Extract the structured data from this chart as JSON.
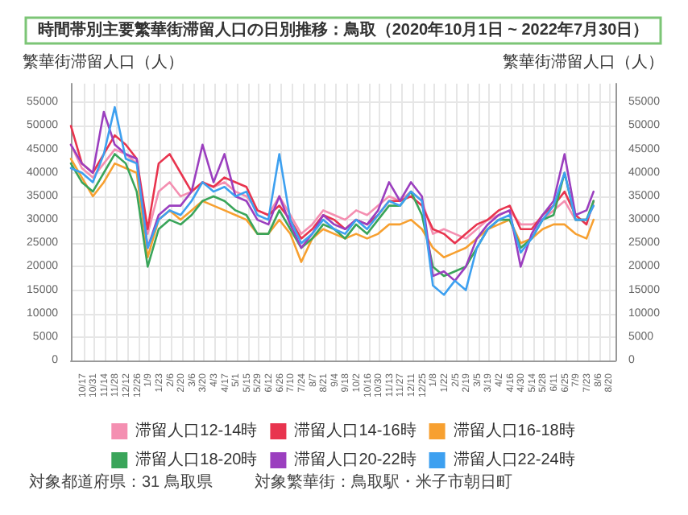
{
  "chart_data": {
    "type": "line",
    "title": "時間帯別主要繁華街滞留人口の日別推移：鳥取（2020年10月1日 ~ 2022年7月30日）",
    "ylabel": "繁華街滞留人口（人）",
    "y2label": "繁華街滞留人口（人）",
    "annotations": [
      "対象都道府県：31 鳥取県",
      "対象繁華街：鳥取駅・米子市朝日町"
    ],
    "x": [
      "2020-10-01",
      "2020-10-15",
      "2020-10-29",
      "2020-11-12",
      "2020-11-26",
      "2020-12-10",
      "2020-12-24",
      "2021-01-07",
      "2021-01-21",
      "2021-02-04",
      "2021-02-18",
      "2021-03-04",
      "2021-03-18",
      "2021-04-01",
      "2021-04-15",
      "2021-04-29",
      "2021-05-13",
      "2021-05-27",
      "2021-06-10",
      "2021-06-24",
      "2021-07-08",
      "2021-07-22",
      "2021-08-05",
      "2021-08-19",
      "2021-09-02",
      "2021-09-16",
      "2021-09-30",
      "2021-10-14",
      "2021-10-28",
      "2021-11-11",
      "2021-11-25",
      "2021-12-09",
      "2021-12-23",
      "2022-01-06",
      "2022-01-20",
      "2022-02-03",
      "2022-02-17",
      "2022-03-03",
      "2022-03-17",
      "2022-03-31",
      "2022-04-14",
      "2022-04-28",
      "2022-05-12",
      "2022-05-26",
      "2022-06-09",
      "2022-06-23",
      "2022-07-07",
      "2022-07-21",
      "2022-07-30"
    ],
    "series": [
      {
        "name": "滞留人口12-14時",
        "color": "#f48fb1",
        "values": [
          46000,
          41000,
          39000,
          42000,
          45000,
          44000,
          42000,
          27000,
          36000,
          38000,
          35000,
          36000,
          38000,
          37000,
          38000,
          36000,
          35000,
          32000,
          31000,
          35000,
          31000,
          27000,
          29000,
          32000,
          31000,
          30000,
          32000,
          31000,
          33000,
          35000,
          34000,
          36000,
          34000,
          27000,
          28000,
          27000,
          26000,
          28000,
          30000,
          31000,
          32000,
          29000,
          29000,
          30000,
          32000,
          34000,
          30000,
          30000,
          33000
        ]
      },
      {
        "name": "滞留人口14-16時",
        "color": "#e8344e",
        "values": [
          50000,
          42000,
          40000,
          44000,
          48000,
          46000,
          43000,
          28000,
          42000,
          44000,
          40000,
          36000,
          38000,
          37000,
          39000,
          38000,
          37000,
          32000,
          31000,
          33000,
          30000,
          26000,
          28000,
          31000,
          30000,
          28000,
          30000,
          29000,
          31000,
          34000,
          34000,
          35000,
          33000,
          28000,
          27000,
          25000,
          27000,
          29000,
          30000,
          32000,
          33000,
          28000,
          28000,
          31000,
          33000,
          36000,
          31000,
          29000,
          34000
        ]
      },
      {
        "name": "滞留人口16-18時",
        "color": "#f7a030",
        "values": [
          43000,
          39000,
          35000,
          38000,
          42000,
          41000,
          40000,
          22000,
          30000,
          32000,
          30000,
          32000,
          34000,
          33000,
          32000,
          31000,
          30000,
          27000,
          27000,
          30000,
          27000,
          21000,
          26000,
          28000,
          27000,
          26000,
          27000,
          26000,
          27000,
          29000,
          29000,
          30000,
          28000,
          24000,
          22000,
          23000,
          24000,
          26000,
          28000,
          29000,
          30000,
          25000,
          26000,
          28000,
          29000,
          29000,
          27000,
          26000,
          30000
        ]
      },
      {
        "name": "滞留人口18-20時",
        "color": "#3aa55a",
        "values": [
          42000,
          38000,
          36000,
          40000,
          44000,
          42000,
          36000,
          20000,
          28000,
          30000,
          29000,
          31000,
          34000,
          35000,
          34000,
          32000,
          31000,
          27000,
          27000,
          32000,
          28000,
          24000,
          26000,
          29000,
          28000,
          26000,
          29000,
          27000,
          30000,
          33000,
          33000,
          36000,
          31000,
          20000,
          18000,
          19000,
          20000,
          24000,
          28000,
          30000,
          30000,
          24000,
          26000,
          30000,
          31000,
          40000,
          30000,
          30000,
          34000
        ]
      },
      {
        "name": "滞留人口20-22時",
        "color": "#9b3fbf",
        "values": [
          46000,
          42000,
          40000,
          53000,
          46000,
          44000,
          43000,
          24000,
          31000,
          33000,
          33000,
          36000,
          46000,
          38000,
          44000,
          35000,
          34000,
          30000,
          29000,
          35000,
          29000,
          24000,
          27000,
          31000,
          29000,
          28000,
          30000,
          29000,
          32000,
          38000,
          34000,
          38000,
          35000,
          18000,
          19000,
          17000,
          20000,
          26000,
          29000,
          31000,
          32000,
          20000,
          27000,
          31000,
          34000,
          44000,
          31000,
          32000,
          36000
        ]
      },
      {
        "name": "滞留人口22-24時",
        "color": "#3da0f0",
        "values": [
          41000,
          40000,
          38000,
          44000,
          54000,
          43000,
          42000,
          24000,
          30000,
          32000,
          31000,
          34000,
          38000,
          36000,
          37000,
          35000,
          36000,
          31000,
          30000,
          44000,
          30000,
          25000,
          27000,
          30000,
          28000,
          27000,
          30000,
          28000,
          31000,
          34000,
          33000,
          36000,
          34000,
          16000,
          14000,
          17000,
          15000,
          24000,
          28000,
          30000,
          31000,
          23000,
          26000,
          30000,
          33000,
          40000,
          30000,
          30000,
          33000
        ]
      }
    ],
    "xlim": [
      "2020-10-01",
      "2022-08-27"
    ],
    "xticks": [
      {
        "value": "2020-10-17",
        "label": "10/17"
      },
      {
        "value": "2020-10-31",
        "label": "10/31"
      },
      {
        "value": "2020-11-14",
        "label": "11/14"
      },
      {
        "value": "2020-11-28",
        "label": "11/28"
      },
      {
        "value": "2020-12-12",
        "label": "12/12"
      },
      {
        "value": "2020-12-26",
        "label": "12/26"
      },
      {
        "value": "2021-01-09",
        "label": "1/9"
      },
      {
        "value": "2021-01-23",
        "label": "1/23"
      },
      {
        "value": "2021-02-06",
        "label": "2/6"
      },
      {
        "value": "2021-02-20",
        "label": "2/20"
      },
      {
        "value": "2021-03-06",
        "label": "3/6"
      },
      {
        "value": "2021-03-20",
        "label": "3/20"
      },
      {
        "value": "2021-04-03",
        "label": "4/3"
      },
      {
        "value": "2021-04-17",
        "label": "4/17"
      },
      {
        "value": "2021-05-01",
        "label": "5/1"
      },
      {
        "value": "2021-05-15",
        "label": "5/15"
      },
      {
        "value": "2021-05-29",
        "label": "5/29"
      },
      {
        "value": "2021-06-12",
        "label": "6/12"
      },
      {
        "value": "2021-06-26",
        "label": "6/26"
      },
      {
        "value": "2021-07-10",
        "label": "7/10"
      },
      {
        "value": "2021-07-24",
        "label": "7/24"
      },
      {
        "value": "2021-08-07",
        "label": "8/7"
      },
      {
        "value": "2021-08-21",
        "label": "8/21"
      },
      {
        "value": "2021-09-04",
        "label": "9/4"
      },
      {
        "value": "2021-09-18",
        "label": "9/18"
      },
      {
        "value": "2021-10-02",
        "label": "10/2"
      },
      {
        "value": "2021-10-16",
        "label": "10/16"
      },
      {
        "value": "2021-10-30",
        "label": "10/30"
      },
      {
        "value": "2021-11-13",
        "label": "11/13"
      },
      {
        "value": "2021-11-27",
        "label": "11/27"
      },
      {
        "value": "2021-12-11",
        "label": "12/11"
      },
      {
        "value": "2021-12-25",
        "label": "12/25"
      },
      {
        "value": "2022-01-08",
        "label": "1/8"
      },
      {
        "value": "2022-01-22",
        "label": "1/22"
      },
      {
        "value": "2022-02-05",
        "label": "2/5"
      },
      {
        "value": "2022-02-19",
        "label": "2/19"
      },
      {
        "value": "2022-03-05",
        "label": "3/5"
      },
      {
        "value": "2022-03-19",
        "label": "3/19"
      },
      {
        "value": "2022-04-02",
        "label": "4/2"
      },
      {
        "value": "2022-04-16",
        "label": "4/16"
      },
      {
        "value": "2022-04-30",
        "label": "4/30"
      },
      {
        "value": "2022-05-14",
        "label": "5/14"
      },
      {
        "value": "2022-05-28",
        "label": "5/28"
      },
      {
        "value": "2022-06-11",
        "label": "6/11"
      },
      {
        "value": "2022-06-25",
        "label": "6/25"
      },
      {
        "value": "2022-07-09",
        "label": "7/9"
      },
      {
        "value": "2022-07-23",
        "label": "7/23"
      },
      {
        "value": "2022-08-06",
        "label": "8/6"
      },
      {
        "value": "2022-08-20",
        "label": "8/20"
      }
    ],
    "ylim": [
      0,
      59000
    ],
    "yticks": [
      0,
      5000,
      10000,
      15000,
      20000,
      25000,
      30000,
      35000,
      40000,
      45000,
      50000,
      55000
    ],
    "y2lim": [
      0,
      59000
    ],
    "y2ticks": [
      0,
      5000,
      10000,
      15000,
      20000,
      25000,
      30000,
      35000,
      40000,
      45000,
      50000,
      55000
    ],
    "grid": true,
    "legend": "bottom",
    "marker": "none",
    "line_style": "solid"
  }
}
